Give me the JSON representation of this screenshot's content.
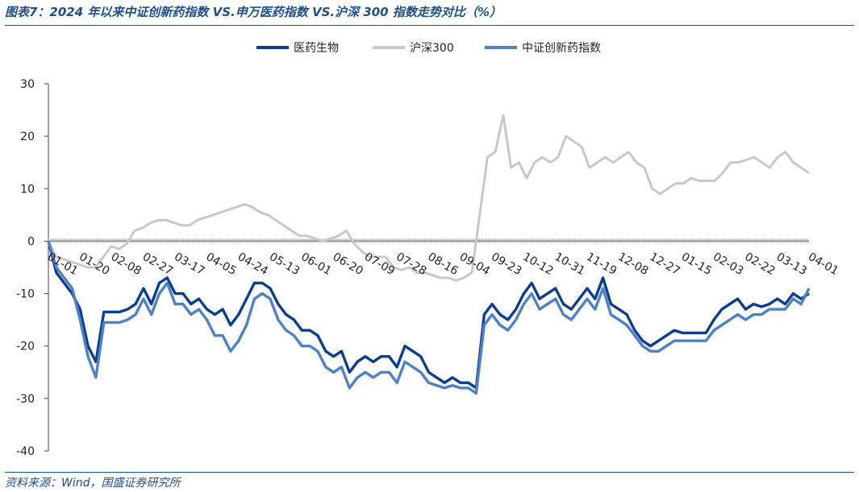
{
  "title": "图表7：2024 年以来中证创新药指数 VS.申万医药指数 VS.沪深 300 指数走势对比（%）",
  "source": "资料来源：Wind，国盛证券研究所",
  "chart_data": {
    "type": "line",
    "title": "",
    "xlabel": "",
    "ylabel": "",
    "ylim": [
      -40,
      30
    ],
    "yticks": [
      30,
      20,
      10,
      0,
      -10,
      -20,
      -30,
      -40
    ],
    "legend_position": "top",
    "x_tick_labels": [
      "01-01",
      "01-20",
      "02-08",
      "02-27",
      "03-17",
      "04-05",
      "04-24",
      "05-13",
      "06-01",
      "06-20",
      "07-09",
      "07-28",
      "08-16",
      "09-04",
      "09-23",
      "10-12",
      "10-31",
      "11-19",
      "12-08",
      "12-27",
      "01-15",
      "02-03",
      "02-22",
      "03-13",
      "04-01"
    ],
    "series": [
      {
        "name": "医药生物",
        "color": "#0b3d91",
        "values": [
          0,
          -6,
          -8,
          -10,
          -13,
          -20,
          -23,
          -13.5,
          -13.5,
          -13.5,
          -13,
          -12,
          -9,
          -12,
          -8,
          -7,
          -10,
          -10,
          -12,
          -11,
          -13,
          -14,
          -13,
          -16,
          -14,
          -11,
          -8,
          -8,
          -9,
          -12,
          -14,
          -15,
          -17,
          -17,
          -18,
          -21,
          -22,
          -21,
          -25,
          -23,
          -22,
          -23,
          -22,
          -22,
          -24,
          -20,
          -21,
          -22,
          -25,
          -26,
          -27,
          -26,
          -27,
          -27,
          -28,
          -14,
          -12,
          -14,
          -15,
          -13,
          -10,
          -8,
          -11,
          -10,
          -9,
          -12,
          -13,
          -11,
          -9,
          -11,
          -7,
          -12,
          -13,
          -14,
          -17,
          -19,
          -20,
          -19,
          -18,
          -17,
          -17.5,
          -17.5,
          -17.5,
          -17.5,
          -15,
          -13,
          -12,
          -11,
          -13,
          -12,
          -12.5,
          -12,
          -11,
          -12,
          -10,
          -11,
          -10
        ]
      },
      {
        "name": "沪深300",
        "color": "#c8c8c8",
        "values": [
          0,
          -3,
          -3.5,
          -4,
          -4.5,
          -5,
          -5,
          -3,
          -1,
          -1.5,
          -0.5,
          2,
          2.5,
          3.5,
          4,
          4,
          3.5,
          3,
          3,
          4,
          4.5,
          5,
          5.5,
          6,
          6.5,
          7,
          6.5,
          5.5,
          5,
          4,
          3,
          2,
          1,
          1,
          0.5,
          0,
          0.5,
          1,
          2,
          -0.5,
          -2,
          -3,
          -3,
          -3,
          -5,
          -5.5,
          -5,
          -6,
          -6,
          -6.5,
          -7,
          -7,
          -7.5,
          -7,
          -6,
          5,
          16,
          17,
          24,
          14,
          15,
          12,
          15,
          16,
          15,
          16,
          20,
          19,
          18,
          14,
          15,
          16,
          15,
          16,
          17,
          15,
          14,
          10,
          9,
          10,
          11,
          11,
          12,
          11.5,
          11.5,
          11.5,
          13,
          15,
          15,
          15.5,
          16,
          15,
          14,
          16,
          17,
          15,
          14,
          13
        ]
      },
      {
        "name": "中证创新药指数",
        "color": "#4f81c4",
        "values": [
          0,
          -5,
          -7,
          -9,
          -15,
          -22,
          -26,
          -15.5,
          -15.5,
          -15.5,
          -15,
          -14,
          -11,
          -14,
          -10,
          -8,
          -12,
          -12,
          -14,
          -13,
          -15,
          -18,
          -18,
          -21,
          -19,
          -16,
          -11,
          -10,
          -11,
          -15,
          -17,
          -18,
          -20,
          -20,
          -21,
          -24,
          -25,
          -24,
          -28,
          -26,
          -25,
          -26,
          -25,
          -25,
          -27,
          -23,
          -24,
          -25,
          -27,
          -27.5,
          -28,
          -27.5,
          -28,
          -28,
          -29,
          -16,
          -14,
          -16,
          -17,
          -15,
          -12,
          -10,
          -13,
          -12,
          -11,
          -14,
          -15,
          -13,
          -11,
          -13,
          -9,
          -14,
          -15,
          -16,
          -18,
          -20,
          -21,
          -21,
          -20,
          -19,
          -19,
          -19,
          -19,
          -19,
          -17,
          -16,
          -15,
          -14,
          -15,
          -14,
          -14,
          -13,
          -13,
          -13,
          -11,
          -12,
          -9
        ]
      }
    ]
  }
}
